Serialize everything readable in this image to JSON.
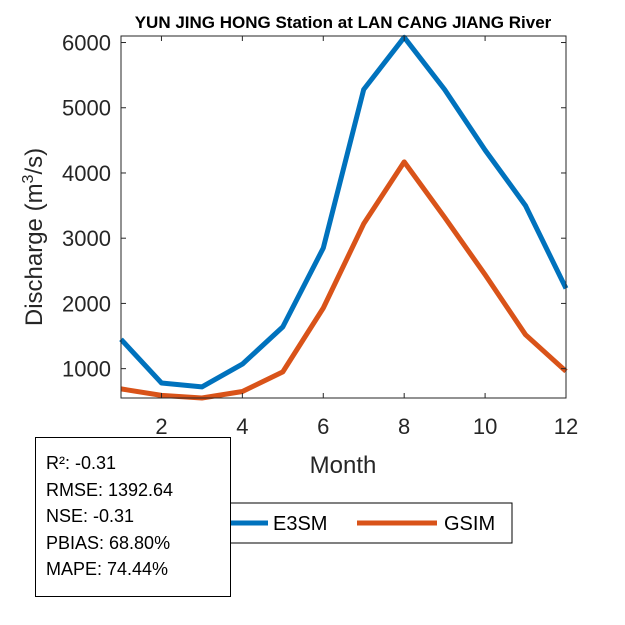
{
  "chart_data": {
    "type": "line",
    "title": "YUN JING HONG  Station at  LAN CANG JIANG  River",
    "xlabel": "Month",
    "ylabel_prefix": "Discharge (m",
    "ylabel_sup": "3",
    "ylabel_suffix": "/s)",
    "xlim": [
      1,
      12
    ],
    "ylim": [
      550,
      6100
    ],
    "xticks": [
      2,
      4,
      6,
      8,
      10,
      12
    ],
    "yticks": [
      1000,
      2000,
      3000,
      4000,
      5000,
      6000
    ],
    "x": [
      1,
      2,
      3,
      4,
      5,
      6,
      7,
      8,
      9,
      10,
      11,
      12
    ],
    "series": [
      {
        "name": "E3SM",
        "color": "#0072BD",
        "values": [
          1450,
          780,
          720,
          1070,
          1640,
          2850,
          5280,
          6080,
          5280,
          4350,
          3500,
          2230
        ]
      },
      {
        "name": "GSIM",
        "color": "#D95319",
        "values": [
          690,
          590,
          550,
          650,
          950,
          1930,
          3220,
          4170,
          3320,
          2440,
          1520,
          960
        ]
      }
    ],
    "legend": "bottom-right"
  },
  "stats": {
    "r2": "R²: -0.31",
    "rmse": "RMSE: 1392.64",
    "nse": "NSE: -0.31",
    "pbias": "PBIAS: 68.80%",
    "mape": "MAPE: 74.44%"
  }
}
